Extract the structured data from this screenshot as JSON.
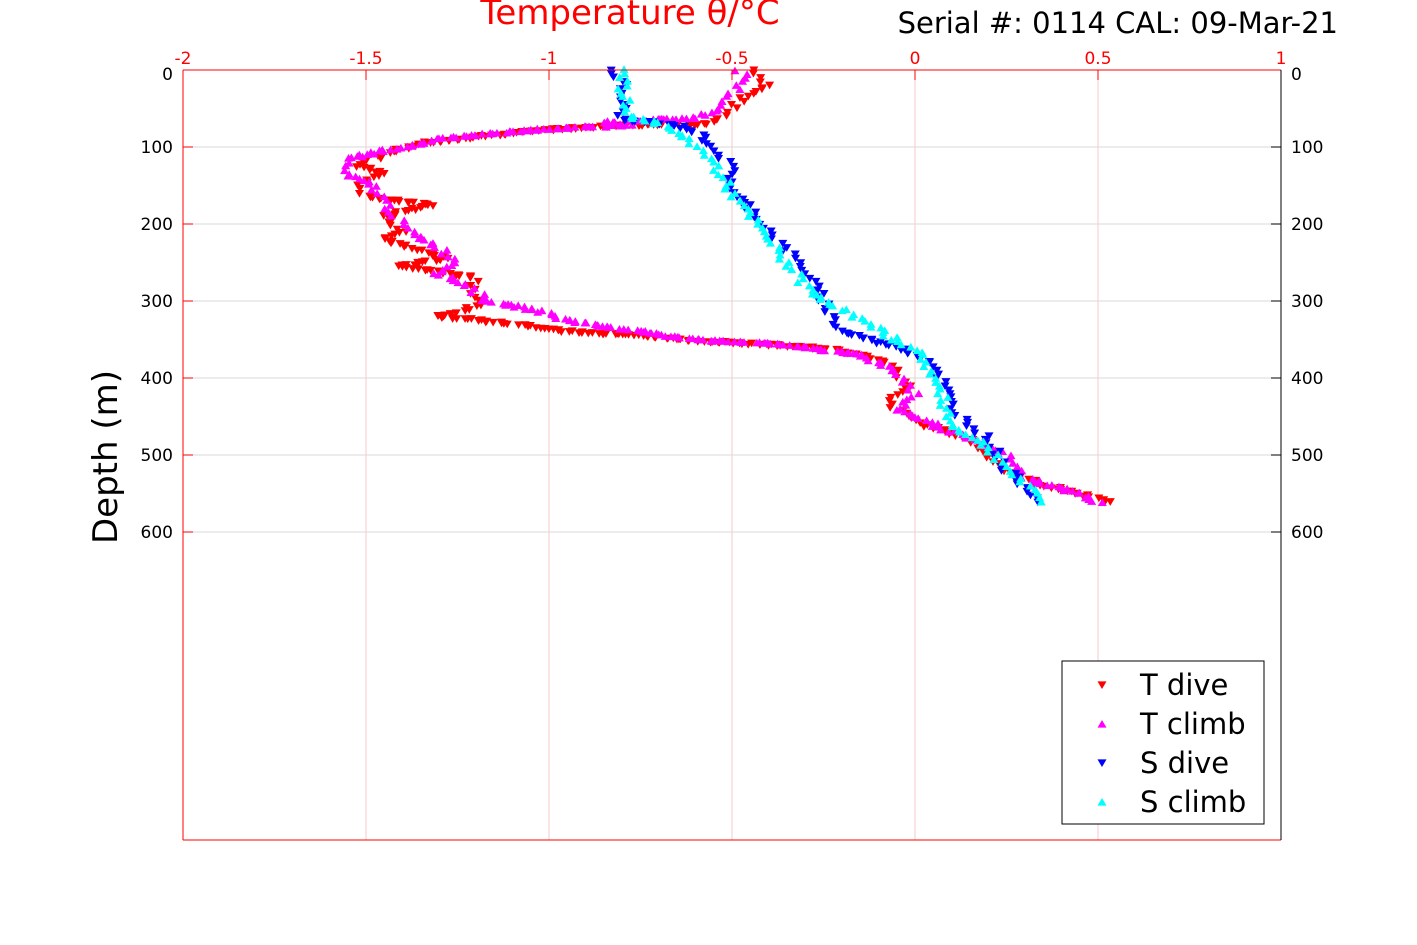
{
  "chart_data": {
    "type": "scatter",
    "title": "Serial #: 0114  CAL: 09-Mar-21",
    "xlabel": "Temperature θ/°C",
    "ylabel": "Depth (m)",
    "xlim": [
      -2,
      1
    ],
    "ylim": [
      0,
      1000
    ],
    "y_reversed": true,
    "x_ticks": [
      "-2",
      "-1.5",
      "-1",
      "-0.5",
      "0",
      "0.5",
      "1"
    ],
    "x_tick_values": [
      -2,
      -1.5,
      -1,
      -0.5,
      0,
      0.5,
      1
    ],
    "y_ticks": [
      "0",
      "100",
      "200",
      "300",
      "400",
      "500",
      "600"
    ],
    "y_tick_values": [
      0,
      100,
      200,
      300,
      400,
      500,
      600
    ],
    "grid": true,
    "legend_position": "bottom-right",
    "colors": {
      "axis": "#ff0000",
      "grid_x": "#f5c8c8",
      "grid_y": "#d9d9d9"
    },
    "series": [
      {
        "name": "T dive",
        "marker": "triangle-down",
        "color": "#ff0000",
        "points": [
          [
            0,
            -0.44
          ],
          [
            20,
            -0.4
          ],
          [
            40,
            -0.48
          ],
          [
            60,
            -0.52
          ],
          [
            70,
            -0.56
          ],
          [
            72,
            -0.8
          ],
          [
            78,
            -1.0
          ],
          [
            85,
            -1.15
          ],
          [
            95,
            -1.35
          ],
          [
            110,
            -1.45
          ],
          [
            125,
            -1.52
          ],
          [
            135,
            -1.45
          ],
          [
            150,
            -1.52
          ],
          [
            165,
            -1.5
          ],
          [
            175,
            -1.32
          ],
          [
            190,
            -1.45
          ],
          [
            210,
            -1.4
          ],
          [
            220,
            -1.45
          ],
          [
            235,
            -1.35
          ],
          [
            245,
            -1.28
          ],
          [
            255,
            -1.4
          ],
          [
            270,
            -1.2
          ],
          [
            290,
            -1.2
          ],
          [
            305,
            -1.2
          ],
          [
            315,
            -1.25
          ],
          [
            320,
            -1.3
          ],
          [
            330,
            -1.1
          ],
          [
            340,
            -0.95
          ],
          [
            345,
            -0.75
          ],
          [
            352,
            -0.6
          ],
          [
            357,
            -0.4
          ],
          [
            362,
            -0.25
          ],
          [
            370,
            -0.15
          ],
          [
            380,
            -0.07
          ],
          [
            395,
            -0.05
          ],
          [
            410,
            -0.02
          ],
          [
            430,
            -0.08
          ],
          [
            450,
            -0.02
          ],
          [
            465,
            0.05
          ],
          [
            480,
            0.15
          ],
          [
            500,
            0.2
          ],
          [
            520,
            0.25
          ],
          [
            540,
            0.35
          ],
          [
            550,
            0.45
          ],
          [
            560,
            0.52
          ],
          [
            565,
            0.52
          ]
        ]
      },
      {
        "name": "T climb",
        "marker": "triangle-up",
        "color": "#ff00ff",
        "points": [
          [
            0,
            -0.48
          ],
          [
            10,
            -0.46
          ],
          [
            30,
            -0.5
          ],
          [
            50,
            -0.54
          ],
          [
            62,
            -0.6
          ],
          [
            68,
            -0.85
          ],
          [
            72,
            -0.78
          ],
          [
            76,
            -1.0
          ],
          [
            82,
            -1.15
          ],
          [
            90,
            -1.3
          ],
          [
            100,
            -1.4
          ],
          [
            115,
            -1.55
          ],
          [
            135,
            -1.56
          ],
          [
            150,
            -1.48
          ],
          [
            170,
            -1.45
          ],
          [
            190,
            -1.42
          ],
          [
            210,
            -1.38
          ],
          [
            230,
            -1.3
          ],
          [
            250,
            -1.25
          ],
          [
            265,
            -1.3
          ],
          [
            280,
            -1.22
          ],
          [
            300,
            -1.17
          ],
          [
            310,
            -1.05
          ],
          [
            325,
            -0.95
          ],
          [
            340,
            -0.75
          ],
          [
            350,
            -0.6
          ],
          [
            355,
            -0.4
          ],
          [
            360,
            -0.3
          ],
          [
            370,
            -0.15
          ],
          [
            390,
            -0.05
          ],
          [
            420,
            0.0
          ],
          [
            440,
            -0.05
          ],
          [
            460,
            0.05
          ],
          [
            480,
            0.15
          ],
          [
            500,
            0.25
          ],
          [
            530,
            0.3
          ],
          [
            550,
            0.45
          ],
          [
            565,
            0.52
          ]
        ]
      },
      {
        "name": "S dive",
        "marker": "triangle-down",
        "color": "#0000ff",
        "points": [
          [
            0,
            -0.83
          ],
          [
            20,
            -0.8
          ],
          [
            50,
            -0.8
          ],
          [
            65,
            -0.8
          ],
          [
            72,
            -0.65
          ],
          [
            80,
            -0.6
          ],
          [
            100,
            -0.55
          ],
          [
            130,
            -0.5
          ],
          [
            160,
            -0.5
          ],
          [
            180,
            -0.45
          ],
          [
            220,
            -0.38
          ],
          [
            260,
            -0.3
          ],
          [
            300,
            -0.25
          ],
          [
            320,
            -0.23
          ],
          [
            340,
            -0.2
          ],
          [
            360,
            -0.05
          ],
          [
            380,
            0.05
          ],
          [
            410,
            0.08
          ],
          [
            440,
            0.1
          ],
          [
            480,
            0.2
          ],
          [
            520,
            0.25
          ],
          [
            565,
            0.36
          ]
        ]
      },
      {
        "name": "S climb",
        "marker": "triangle-up",
        "color": "#00ffff",
        "points": [
          [
            0,
            -0.8
          ],
          [
            30,
            -0.8
          ],
          [
            60,
            -0.78
          ],
          [
            70,
            -0.7
          ],
          [
            90,
            -0.62
          ],
          [
            120,
            -0.55
          ],
          [
            160,
            -0.5
          ],
          [
            190,
            -0.45
          ],
          [
            220,
            -0.4
          ],
          [
            250,
            -0.35
          ],
          [
            290,
            -0.28
          ],
          [
            310,
            -0.2
          ],
          [
            330,
            -0.13
          ],
          [
            350,
            -0.05
          ],
          [
            370,
            0.02
          ],
          [
            400,
            0.05
          ],
          [
            430,
            0.08
          ],
          [
            460,
            0.1
          ],
          [
            490,
            0.2
          ],
          [
            530,
            0.28
          ],
          [
            565,
            0.36
          ]
        ]
      }
    ]
  }
}
